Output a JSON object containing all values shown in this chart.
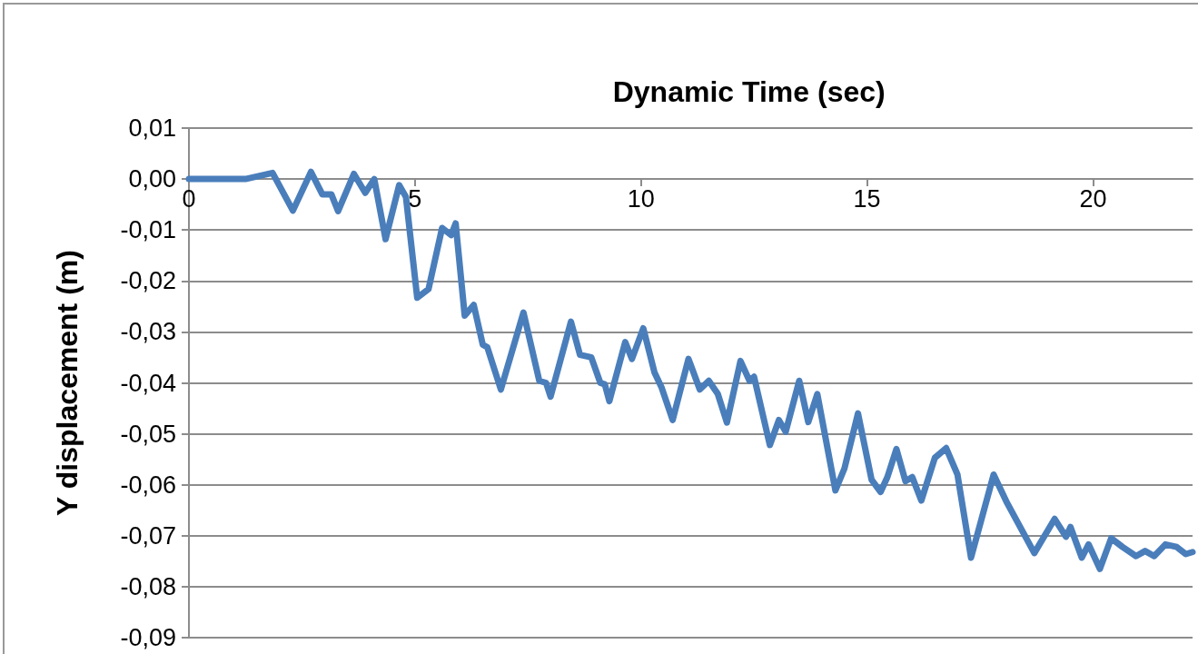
{
  "chart_data": {
    "type": "line",
    "xlabel": "Dynamic Time (sec)",
    "ylabel": "Y displacement (m)",
    "x": [
      0,
      1.25,
      1.85,
      2.3,
      2.7,
      2.95,
      3.15,
      3.3,
      3.65,
      3.9,
      4.1,
      4.35,
      4.65,
      4.8,
      5.05,
      5.3,
      5.6,
      5.8,
      5.9,
      6.1,
      6.3,
      6.5,
      6.6,
      6.9,
      7.4,
      7.75,
      7.9,
      8.0,
      8.45,
      8.65,
      8.9,
      9.1,
      9.2,
      9.3,
      9.65,
      9.8,
      10.05,
      10.3,
      10.45,
      10.7,
      11.05,
      11.3,
      11.5,
      11.7,
      11.9,
      12.2,
      12.4,
      12.5,
      12.85,
      13.05,
      13.2,
      13.5,
      13.7,
      13.9,
      14.3,
      14.5,
      14.8,
      15.1,
      15.3,
      15.45,
      15.65,
      15.85,
      16.0,
      16.2,
      16.5,
      16.75,
      17.0,
      17.3,
      17.8,
      18.1,
      18.7,
      19.15,
      19.4,
      19.5,
      19.75,
      19.9,
      20.15,
      20.4,
      20.65,
      20.95,
      21.15,
      21.35,
      21.6,
      21.85,
      22.05,
      22.2
    ],
    "series": [
      {
        "color": "#4a7ebb",
        "values": [
          0,
          0,
          0.0012,
          -0.0062,
          0.0014,
          -0.003,
          -0.003,
          -0.0063,
          0.001,
          -0.0027,
          0,
          -0.0118,
          -0.0012,
          -0.0035,
          -0.0233,
          -0.0216,
          -0.0096,
          -0.011,
          -0.0087,
          -0.0268,
          -0.0247,
          -0.0325,
          -0.033,
          -0.0413,
          -0.0262,
          -0.0396,
          -0.04,
          -0.0427,
          -0.028,
          -0.0345,
          -0.035,
          -0.04,
          -0.0403,
          -0.0436,
          -0.032,
          -0.0353,
          -0.0293,
          -0.038,
          -0.0408,
          -0.0473,
          -0.0353,
          -0.0413,
          -0.0396,
          -0.0422,
          -0.0478,
          -0.0357,
          -0.0396,
          -0.0388,
          -0.0522,
          -0.0473,
          -0.0496,
          -0.0396,
          -0.0477,
          -0.0422,
          -0.0611,
          -0.0568,
          -0.046,
          -0.059,
          -0.0614,
          -0.0585,
          -0.053,
          -0.0593,
          -0.0585,
          -0.0631,
          -0.0547,
          -0.0528,
          -0.058,
          -0.0743,
          -0.058,
          -0.0636,
          -0.0734,
          -0.0667,
          -0.0702,
          -0.0683,
          -0.0743,
          -0.0717,
          -0.0765,
          -0.0705,
          -0.0722,
          -0.074,
          -0.073,
          -0.074,
          -0.0717,
          -0.0722,
          -0.0736,
          -0.0732
        ]
      }
    ],
    "xlim": [
      0,
      22.2
    ],
    "xticks": [
      0,
      5,
      10,
      15,
      20
    ],
    "ylim": [
      -0.09,
      0.01
    ],
    "yticks": [
      {
        "value": 0.01,
        "label": "0,01"
      },
      {
        "value": 0,
        "label": "0,00"
      },
      {
        "value": -0.01,
        "label": "-0,01"
      },
      {
        "value": -0.02,
        "label": "-0,02"
      },
      {
        "value": -0.03,
        "label": "-0,03"
      },
      {
        "value": -0.04,
        "label": "-0,04"
      },
      {
        "value": -0.05,
        "label": "-0,05"
      },
      {
        "value": -0.06,
        "label": "-0,06"
      },
      {
        "value": -0.07,
        "label": "-0,07"
      },
      {
        "value": -0.08,
        "label": "-0,08"
      },
      {
        "value": -0.09,
        "label": "-0,09"
      }
    ],
    "grid": "y",
    "marker": "none",
    "line_style": "solid"
  }
}
